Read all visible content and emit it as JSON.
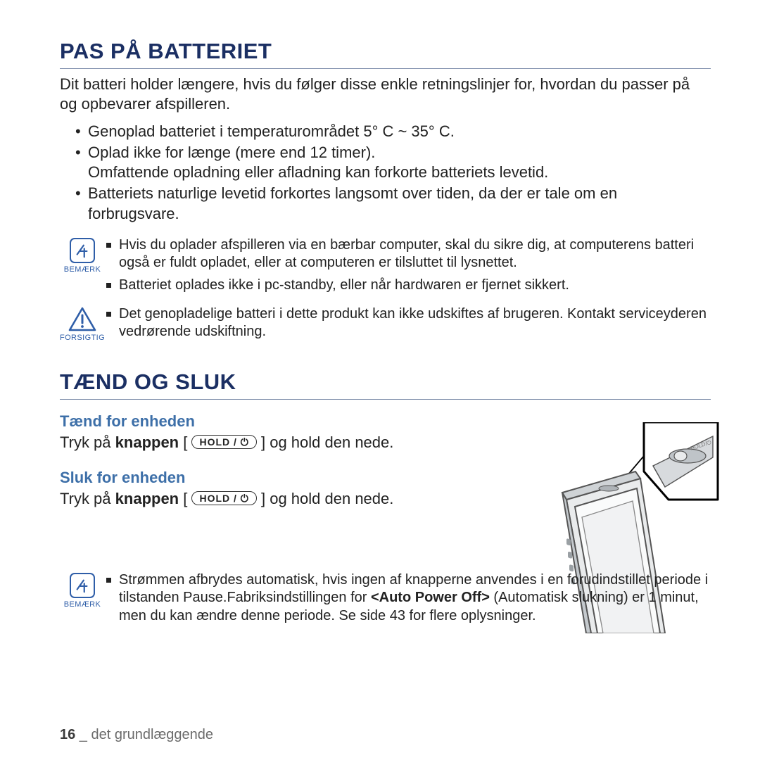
{
  "colors": {
    "heading": "#1b2f63",
    "rule": "#7a8aa8",
    "sub_heading": "#3d6fa8",
    "note_icon": "#2f5ea8",
    "body_text": "#222222",
    "footer_muted": "#6b6b6b",
    "background": "#ffffff"
  },
  "typography": {
    "heading_size_pt": 23,
    "body_size_pt": 16,
    "note_size_pt": 15,
    "sub_heading_size_pt": 16,
    "footer_size_pt": 15,
    "font_family": "Arial"
  },
  "section_battery": {
    "title": "PAS PÅ BATTERIET",
    "intro": "Dit batteri holder længere, hvis du følger disse enkle retningslinjer for, hvordan du passer på og opbevarer afspilleren.",
    "bullets": [
      "Genoplad batteriet i temperaturområdet 5° C ~ 35° C.",
      "Oplad ikke for længe (mere end 12 timer).\nOmfattende opladning eller afladning kan forkorte batteriets levetid.",
      "Batteriets naturlige levetid forkortes langsomt over tiden, da der er tale om en forbrugsvare."
    ],
    "note_label": "BEMÆRK",
    "note_items": [
      "Hvis du oplader afspilleren via en bærbar computer, skal du sikre dig, at computerens batteri også er fuldt opladet, eller at computeren er tilsluttet til lysnettet.",
      "Batteriet oplades ikke i pc-standby, eller når hardwaren er fjernet sikkert."
    ],
    "caution_label": "FORSIGTIG",
    "caution_items": [
      "Det genopladelige batteri i dette produkt kan ikke udskiftes af brugeren. Kontakt serviceyderen vedrørende udskiftning."
    ]
  },
  "section_power": {
    "title": "TÆND OG SLUK",
    "on_heading": "Tænd for enheden",
    "on_pre": "Tryk på ",
    "on_bold": "knappen",
    "on_open_bracket": " [ ",
    "hold_label": "HOLD / ⏻",
    "on_close": " ] og hold den nede.",
    "off_heading": "Sluk for enheden",
    "off_pre": "Tryk på ",
    "off_bold": "knappen",
    "off_open_bracket": " [ ",
    "off_close": " ] og hold den nede.",
    "note_label": "BEMÆRK",
    "note_items_html": "Strømmen afbrydes automatisk, hvis ingen af knapperne anvendes i en forudindstillet periode i tilstanden Pause.Fabriksindstillingen for <b>&lt;Auto Power Off&gt;</b> (Automatisk slukning) er 1 minut, men du kan ændre denne periode. Se side 43 for flere oplysninger."
  },
  "footer": {
    "page_number": "16",
    "separator": " _ ",
    "chapter": "det grundlæggende"
  },
  "illustration": {
    "type": "line-drawing",
    "description": "Portable media player device shown in perspective with a callout zoom of the HOLD / power switch on top edge.",
    "stroke_color": "#4a4a4a",
    "stroke_width": 2,
    "fill_light": "#e9ebec",
    "fill_mid": "#c4c9cd",
    "zoom_box_border": "#000000"
  }
}
